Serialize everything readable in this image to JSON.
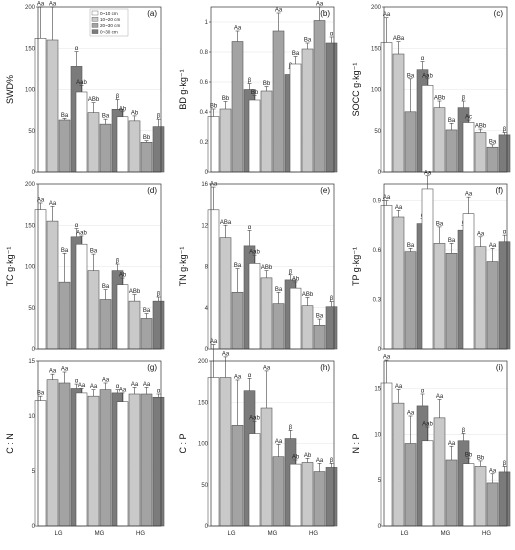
{
  "legend": {
    "entries": [
      "0~10 cm",
      "10~20 cm",
      "20~30 cm",
      "0~30 cm"
    ],
    "colors": [
      "#ffffff",
      "#c9c9c9",
      "#a3a3a3",
      "#7b7b7b"
    ]
  },
  "chart_data": [
    {
      "type": "bar",
      "panel": "(a)",
      "ylabel": "SWD%",
      "categories": [
        "LG",
        "MG",
        "HG"
      ],
      "ylim": [
        0,
        200
      ],
      "yticks": [
        0,
        50,
        100,
        150,
        200
      ],
      "series": [
        {
          "name": "0~10 cm",
          "values": [
            162,
            97,
            67
          ],
          "errors": [
            38,
            8,
            6
          ]
        },
        {
          "name": "10~20 cm",
          "values": [
            160,
            72,
            62
          ],
          "errors": [
            40,
            12,
            6
          ]
        },
        {
          "name": "20~30 cm",
          "values": [
            63,
            58,
            36
          ],
          "errors": [
            2,
            6,
            2
          ]
        },
        {
          "name": "0~30 cm",
          "values": [
            128,
            76,
            55
          ],
          "errors": [
            18,
            12,
            9
          ]
        }
      ],
      "labels": [
        [
          "Aa",
          "Aab",
          "Ab"
        ],
        [
          "Aa",
          "ABb",
          "Ab"
        ],
        [
          "Ba",
          "Ba",
          "Bb"
        ],
        [
          "α",
          "β",
          "β"
        ]
      ]
    },
    {
      "type": "bar",
      "panel": "(b)",
      "ylabel": "BD g·kg⁻¹",
      "categories": [
        "LG",
        "MG",
        "HG"
      ],
      "ylim": [
        0,
        1.1
      ],
      "yticks": [
        0,
        0.2,
        0.4,
        0.6,
        0.8,
        1.0
      ],
      "series": [
        {
          "name": "0~10 cm",
          "values": [
            0.37,
            0.48,
            0.72
          ],
          "errors": [
            0.05,
            0.03,
            0.05
          ]
        },
        {
          "name": "10~20 cm",
          "values": [
            0.42,
            0.54,
            0.82
          ],
          "errors": [
            0.05,
            0.03,
            0.04
          ]
        },
        {
          "name": "20~30 cm",
          "values": [
            0.87,
            0.94,
            1.01
          ],
          "errors": [
            0.07,
            0.12,
            0.09
          ]
        },
        {
          "name": "0~30 cm",
          "values": [
            0.55,
            0.65,
            0.86
          ],
          "errors": [
            0.04,
            0.04,
            0.04
          ]
        }
      ],
      "labels": [
        [
          "Bb",
          "Bb",
          "Ba"
        ],
        [
          "Bb",
          "Bb",
          "Ba"
        ],
        [
          "Aa",
          "Aa",
          "Aa"
        ],
        [
          "β",
          "β",
          "α"
        ]
      ]
    },
    {
      "type": "bar",
      "panel": "(c)",
      "ylabel": "SOCC g·kg⁻¹",
      "categories": [
        "LG",
        "MG",
        "HG"
      ],
      "ylim": [
        0,
        200
      ],
      "yticks": [
        0,
        50,
        100,
        150,
        200
      ],
      "series": [
        {
          "name": "0~10 cm",
          "values": [
            157,
            105,
            60
          ],
          "errors": [
            30,
            8,
            3
          ]
        },
        {
          "name": "10~20 cm",
          "values": [
            143,
            78,
            48
          ],
          "errors": [
            15,
            8,
            4
          ]
        },
        {
          "name": "20~30 cm",
          "values": [
            73,
            51,
            30
          ],
          "errors": [
            40,
            8,
            3
          ]
        },
        {
          "name": "0~30 cm",
          "values": [
            124,
            78,
            45
          ],
          "errors": [
            10,
            8,
            3
          ]
        }
      ],
      "labels": [
        [
          "Aa",
          "Aab",
          "Ac"
        ],
        [
          "ABa",
          "ABb",
          "ABb"
        ],
        [
          "Ba",
          "Ba",
          "Ba"
        ],
        [
          "α",
          "β",
          "β"
        ]
      ]
    },
    {
      "type": "bar",
      "panel": "(d)",
      "ylabel": "TC g·kg⁻¹",
      "categories": [
        "LG",
        "MG",
        "HG"
      ],
      "ylim": [
        0,
        200
      ],
      "yticks": [
        0,
        50,
        100,
        150,
        200
      ],
      "series": [
        {
          "name": "0~10 cm",
          "values": [
            169,
            127,
            78
          ],
          "errors": [
            8,
            10,
            8
          ]
        },
        {
          "name": "10~20 cm",
          "values": [
            155,
            95,
            58
          ],
          "errors": [
            18,
            20,
            8
          ]
        },
        {
          "name": "20~30 cm",
          "values": [
            81,
            60,
            37
          ],
          "errors": [
            35,
            12,
            6
          ]
        },
        {
          "name": "0~30 cm",
          "values": [
            136,
            95,
            58
          ],
          "errors": [
            10,
            8,
            5
          ]
        }
      ],
      "labels": [
        [
          "Aa",
          "Aab",
          "Ab"
        ],
        [
          "Aa",
          "Ba",
          "ABb"
        ],
        [
          "Ba",
          "Ba",
          "Ba"
        ],
        [
          "α",
          "β",
          "β"
        ]
      ]
    },
    {
      "type": "bar",
      "panel": "(e)",
      "ylabel": "TN g·kg⁻¹",
      "categories": [
        "LG",
        "MG",
        "HG"
      ],
      "ylim": [
        0,
        16
      ],
      "yticks": [
        0,
        4,
        8,
        12,
        16
      ],
      "series": [
        {
          "name": "0~10 cm",
          "values": [
            13.5,
            8.3,
            5.9
          ],
          "errors": [
            2.2,
            0.8,
            0.6
          ]
        },
        {
          "name": "10~20 cm",
          "values": [
            10.8,
            6.9,
            4.2
          ],
          "errors": [
            1.2,
            0.7,
            0.8
          ]
        },
        {
          "name": "20~30 cm",
          "values": [
            5.5,
            4.4,
            2.3
          ],
          "errors": [
            2.3,
            1.1,
            0.6
          ]
        },
        {
          "name": "0~30 cm",
          "values": [
            10.0,
            6.7,
            4.1
          ],
          "errors": [
            1.5,
            0.5,
            0.5
          ]
        }
      ],
      "labels": [
        [
          "Aa",
          "Aab",
          "Ab"
        ],
        [
          "ABa",
          "ABb",
          "ABb"
        ],
        [
          "Ba",
          "Ba",
          "Ba"
        ],
        [
          "α",
          "β",
          "β"
        ]
      ]
    },
    {
      "type": "bar",
      "panel": "(f)",
      "ylabel": "TP g·kg⁻¹",
      "categories": [
        "LG",
        "MG",
        "HG"
      ],
      "ylim": [
        0,
        1.0
      ],
      "yticks": [
        0,
        0.3,
        0.6,
        0.9
      ],
      "series": [
        {
          "name": "0~10 cm",
          "values": [
            0.87,
            0.97,
            0.82
          ],
          "errors": [
            0.03,
            0.08,
            0.1
          ]
        },
        {
          "name": "10~20 cm",
          "values": [
            0.8,
            0.64,
            0.62
          ],
          "errors": [
            0.04,
            0.1,
            0.06
          ]
        },
        {
          "name": "20~30 cm",
          "values": [
            0.59,
            0.58,
            0.53
          ],
          "errors": [
            0.02,
            0.06,
            0.08
          ]
        },
        {
          "name": "0~30 cm",
          "values": [
            0.76,
            0.72,
            0.65
          ],
          "errors": [
            0.03,
            0.03,
            0.04
          ]
        }
      ],
      "labels": [
        [
          "Aa",
          "Aa",
          "Aa"
        ],
        [
          "Aa",
          "Ba",
          "Aa"
        ],
        [
          "Ba",
          "Ba",
          "Aa"
        ],
        [
          "α",
          "α",
          "α"
        ]
      ]
    },
    {
      "type": "bar",
      "panel": "(g)",
      "ylabel": "C : N",
      "categories": [
        "LG",
        "MG",
        "HG"
      ],
      "ylim": [
        0,
        15
      ],
      "yticks": [
        0,
        5,
        10,
        15
      ],
      "series": [
        {
          "name": "0~10 cm",
          "values": [
            11.4,
            12.1,
            11.3
          ],
          "errors": [
            0.4,
            0.4,
            0.8
          ]
        },
        {
          "name": "10~20 cm",
          "values": [
            13.3,
            11.8,
            12.0
          ],
          "errors": [
            0.5,
            0.6,
            0.6
          ]
        },
        {
          "name": "20~30 cm",
          "values": [
            13.0,
            12.4,
            12.0
          ],
          "errors": [
            1.0,
            0.6,
            0.6
          ]
        },
        {
          "name": "0~30 cm",
          "values": [
            12.5,
            12.1,
            11.7
          ],
          "errors": [
            0.4,
            0.3,
            0.3
          ]
        }
      ],
      "labels": [
        [
          "Ba",
          "Aa",
          "Aa"
        ],
        [
          "Aa",
          "Aa",
          "Aa"
        ],
        [
          "Aa",
          "Aa",
          "Aa"
        ],
        [
          "α",
          "α",
          "α"
        ]
      ]
    },
    {
      "type": "bar",
      "panel": "(h)",
      "ylabel": "C : P",
      "categories": [
        "LG",
        "MG",
        "HG"
      ],
      "ylim": [
        0,
        200
      ],
      "yticks": [
        0,
        50,
        100,
        150,
        200
      ],
      "series": [
        {
          "name": "0~10 cm",
          "values": [
            180,
            112,
            75
          ],
          "errors": [
            40,
            15,
            5
          ]
        },
        {
          "name": "10~20 cm",
          "values": [
            180,
            143,
            77
          ],
          "errors": [
            25,
            45,
            5
          ]
        },
        {
          "name": "20~30 cm",
          "values": [
            122,
            84,
            66
          ],
          "errors": [
            55,
            15,
            10
          ]
        },
        {
          "name": "0~30 cm",
          "values": [
            164,
            106,
            71
          ],
          "errors": [
            15,
            10,
            5
          ]
        }
      ],
      "labels": [
        [
          "Aa",
          "Aab",
          "Ab"
        ],
        [
          "Aa",
          "Aa",
          "Ab"
        ],
        [
          "Aa",
          "Aa",
          "Aa"
        ],
        [
          "α",
          "β",
          "β"
        ]
      ]
    },
    {
      "type": "bar",
      "panel": "(i)",
      "ylabel": "N : P",
      "categories": [
        "LG",
        "MG",
        "HG"
      ],
      "ylim": [
        0,
        18
      ],
      "yticks": [
        0,
        5,
        10,
        15
      ],
      "series": [
        {
          "name": "0~10 cm",
          "values": [
            15.6,
            9.3,
            6.8
          ],
          "errors": [
            2.5,
            1.5,
            0.6
          ]
        },
        {
          "name": "10~20 cm",
          "values": [
            13.4,
            11.8,
            6.5
          ],
          "errors": [
            1.5,
            2.0,
            0.6
          ]
        },
        {
          "name": "20~30 cm",
          "values": [
            9.0,
            7.2,
            4.7
          ],
          "errors": [
            3.0,
            1.5,
            1.0
          ]
        },
        {
          "name": "0~30 cm",
          "values": [
            13.1,
            9.3,
            5.9
          ],
          "errors": [
            1.3,
            0.8,
            0.6
          ]
        }
      ],
      "labels": [
        [
          "Aa",
          "Aab",
          "Bb"
        ],
        [
          "Aa",
          "Aa",
          "Bb"
        ],
        [
          "Aa",
          "Aa",
          "Aa"
        ],
        [
          "α",
          "β",
          "β"
        ]
      ]
    }
  ]
}
